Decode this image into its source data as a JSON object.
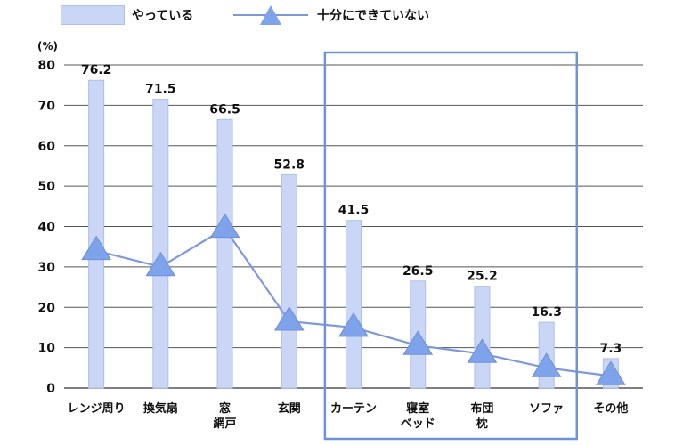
{
  "legend": {
    "bar_label": "やっている",
    "line_label": "十分にできていない"
  },
  "colors": {
    "bar_fill": "#c9d6f6",
    "bar_stroke": "#aebfe8",
    "line": "#7f98d8",
    "marker": "#7fa3ea",
    "highlight_text": "#4a78c8",
    "highlight_box": "#6f94d6",
    "grid": "#555555"
  },
  "chart_data": {
    "type": "bar",
    "ylabel": "(%)",
    "ylim": [
      0,
      80
    ],
    "yticks": [
      0,
      10,
      20,
      30,
      40,
      50,
      60,
      70,
      80
    ],
    "grid": true,
    "categories": [
      {
        "lines": [
          "レンジ周り"
        ],
        "highlight": false
      },
      {
        "lines": [
          "換気扇"
        ],
        "highlight": false
      },
      {
        "lines": [
          "窓",
          "網戸"
        ],
        "highlight": false
      },
      {
        "lines": [
          "玄関"
        ],
        "highlight": false
      },
      {
        "lines": [
          "カーテン"
        ],
        "highlight": true
      },
      {
        "lines": [
          "寝室",
          "ベッド"
        ],
        "highlight": true
      },
      {
        "lines": [
          "布団",
          "枕"
        ],
        "highlight": true
      },
      {
        "lines": [
          "ソファ"
        ],
        "highlight": true
      },
      {
        "lines": [
          "その他"
        ],
        "highlight": false
      }
    ],
    "series": [
      {
        "name": "やっている",
        "kind": "bar",
        "values": [
          76.2,
          71.5,
          66.5,
          52.8,
          41.5,
          26.5,
          25.2,
          16.3,
          7.3
        ],
        "value_labels": [
          "76.2",
          "71.5",
          "66.5",
          "52.8",
          "41.5",
          "26.5",
          "25.2",
          "16.3",
          "7.3"
        ]
      },
      {
        "name": "十分にできていない",
        "kind": "line",
        "values": [
          34,
          30,
          39.5,
          16.5,
          15,
          10.5,
          8.5,
          5,
          3
        ]
      }
    ],
    "highlight_range": [
      4,
      7
    ]
  }
}
